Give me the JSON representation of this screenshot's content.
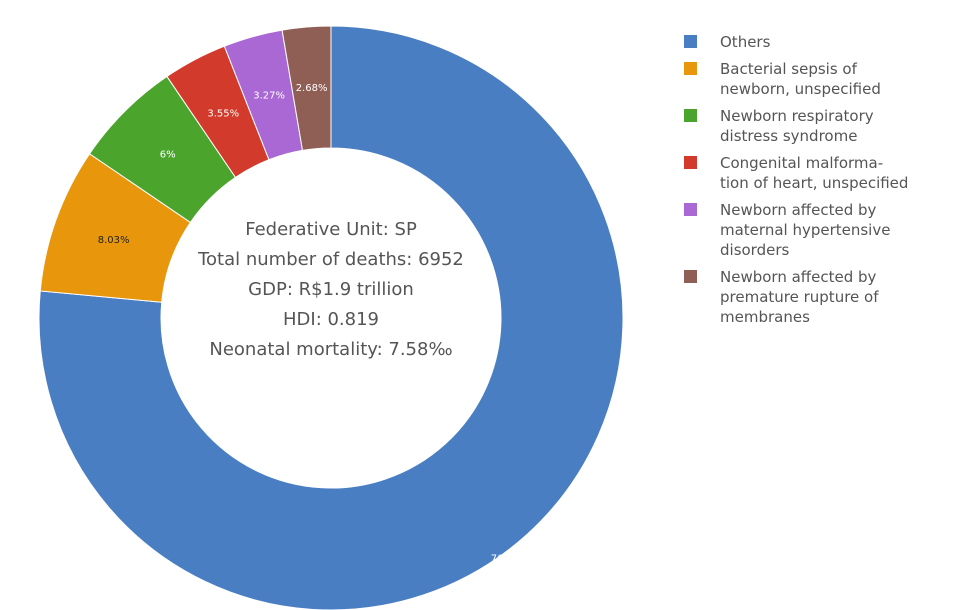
{
  "chart_data": {
    "type": "pie",
    "donut": true,
    "categories": [
      "Others",
      "Bacterial sepsis of newborn, unspecified",
      "Newborn respiratory distress syndrome",
      "Congenital malformation of heart, unspecified",
      "Newborn affected by maternal hypertensive disorders",
      "Newborn affected by premature rupture of membranes"
    ],
    "values": [
      76.5,
      8.03,
      6,
      3.55,
      3.27,
      2.68
    ],
    "value_labels": [
      "76.5%",
      "8.03%",
      "6%",
      "3.55%",
      "3.27%",
      "2.68%"
    ],
    "colors": [
      "#4a7ec2",
      "#e8960b",
      "#4ba52d",
      "#d23b2c",
      "#a968d4",
      "#8f5e55"
    ],
    "center_text": [
      "Federative Unit: SP",
      "Total number of deaths: 6952",
      "GDP: R$1.9 trillion",
      "HDI: 0.819",
      "Neonatal mortality: 7.58‰"
    ],
    "legend": {
      "placement": "right",
      "entries": [
        "Others",
        "Bacterial sepsis of\nnewborn, unspecified",
        "Newborn respiratory\ndistress syndrome",
        "Congenital malforma-\ntion of heart, unspecified",
        "Newborn affected by\nmaternal hypertensive\ndisorders",
        "Newborn affected by\npremature rupture of\nmembranes"
      ]
    }
  }
}
